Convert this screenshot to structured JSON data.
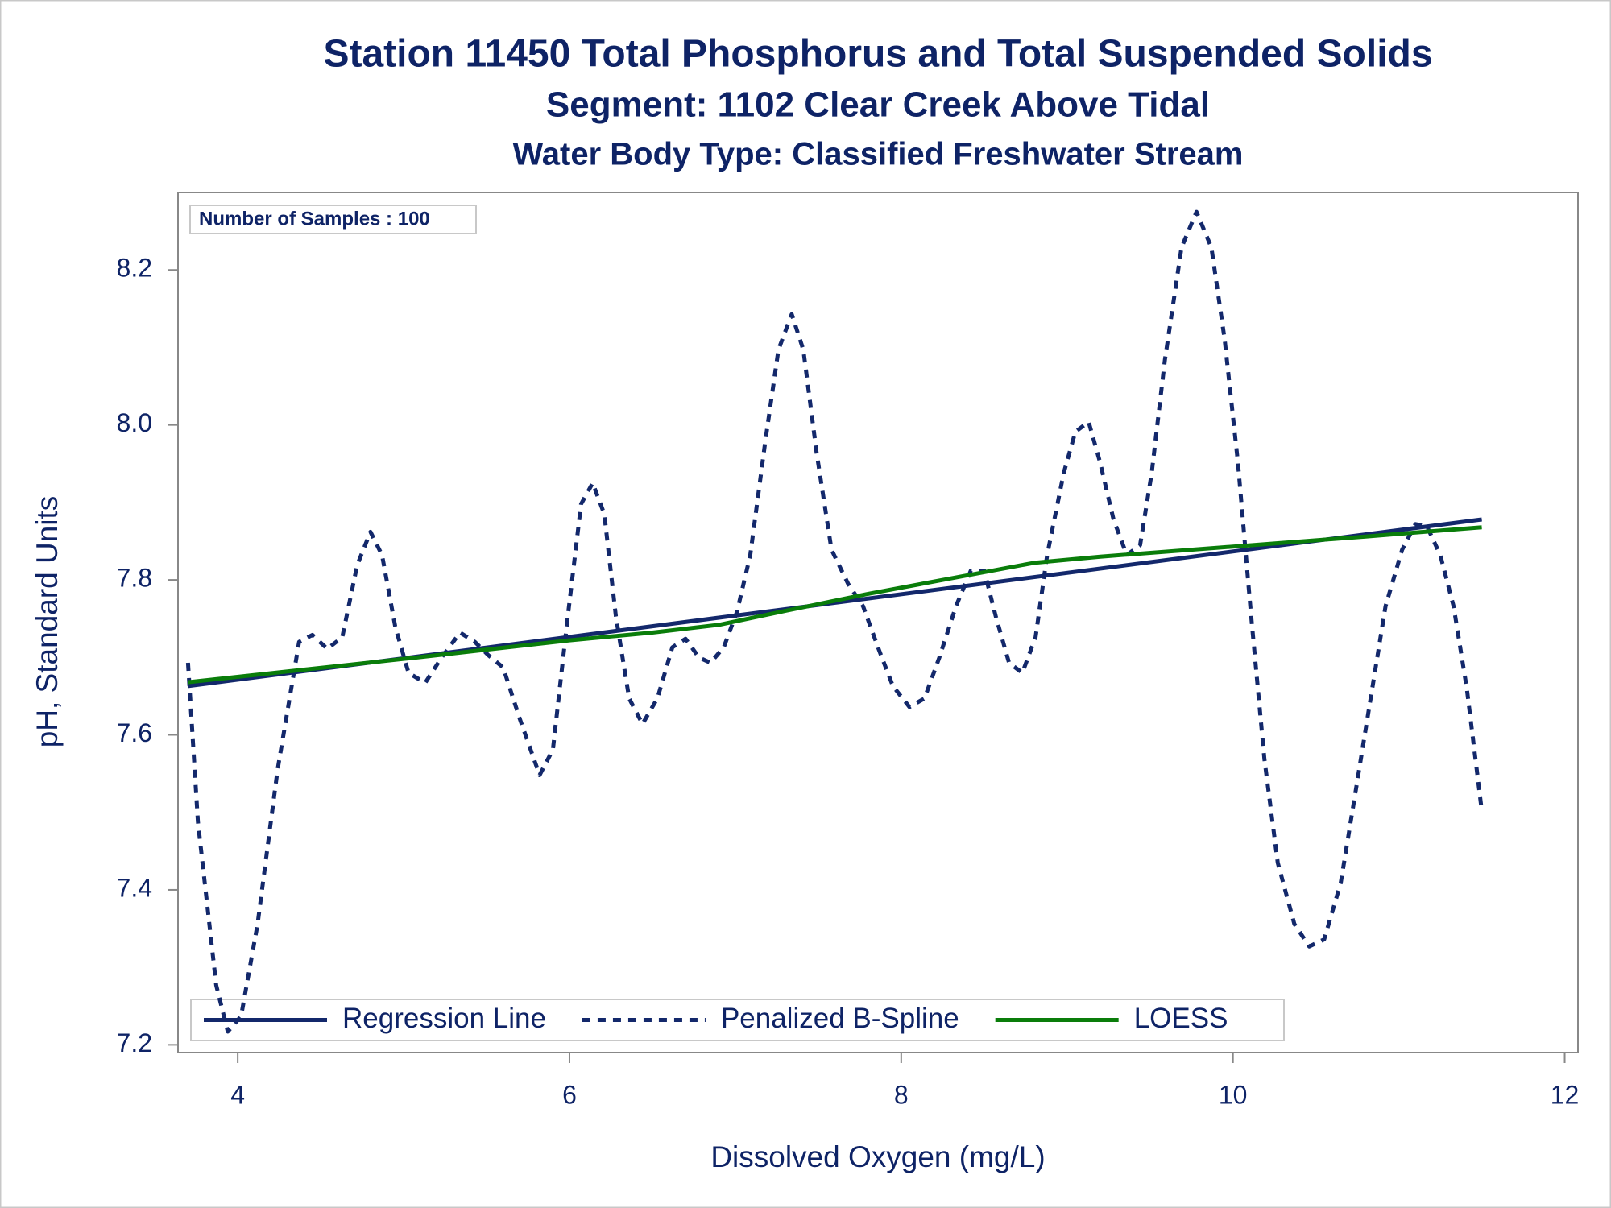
{
  "chart_data": {
    "type": "line",
    "titles": [
      "Station 11450  Total Phosphorus and Total Suspended Solids",
      "Segment: 1102  Clear Creek Above Tidal",
      "Water Body Type: Classified Freshwater Stream"
    ],
    "annotation": "Number of Samples : 100",
    "x_label": "Dissolved Oxygen (mg/L)",
    "y_label": "pH, Standard Units",
    "xlim": [
      3.64,
      12.08
    ],
    "ylim": [
      7.19,
      8.3
    ],
    "xticks": [
      4,
      6,
      8,
      10,
      12
    ],
    "yticks": [
      {
        "value": 7.2,
        "label": "7.2"
      },
      {
        "value": 7.4,
        "label": "7.4"
      },
      {
        "value": 7.6,
        "label": "7.6"
      },
      {
        "value": 7.8,
        "label": "7.8"
      },
      {
        "value": 8.0,
        "label": "8.0"
      },
      {
        "value": 8.2,
        "label": "8.2"
      }
    ],
    "legend": "bottom-left",
    "series": [
      {
        "name": "Regression Line",
        "color": "#13286b",
        "dash": "solid",
        "x": [
          3.7,
          11.5
        ],
        "values": [
          7.663,
          7.878
        ]
      },
      {
        "name": "Penalized B-Spline",
        "color": "#13286b",
        "dash": "dashed",
        "x": [
          3.7,
          3.76,
          3.87,
          3.94,
          4.02,
          4.12,
          4.24,
          4.37,
          4.45,
          4.54,
          4.63,
          4.72,
          4.8,
          4.87,
          4.95,
          5.03,
          5.13,
          5.23,
          5.34,
          5.43,
          5.51,
          5.6,
          5.7,
          5.82,
          5.9,
          5.99,
          6.07,
          6.14,
          6.21,
          6.28,
          6.36,
          6.44,
          6.53,
          6.62,
          6.7,
          6.78,
          6.85,
          6.93,
          7.01,
          7.09,
          7.18,
          7.26,
          7.34,
          7.41,
          7.49,
          7.58,
          7.68,
          7.77,
          7.86,
          7.95,
          8.05,
          8.14,
          8.23,
          8.33,
          8.42,
          8.5,
          8.57,
          8.65,
          8.73,
          8.81,
          8.88,
          8.98,
          9.05,
          9.13,
          9.2,
          9.28,
          9.36,
          9.44,
          9.51,
          9.59,
          9.69,
          9.78,
          9.87,
          9.95,
          10.03,
          10.11,
          10.19,
          10.27,
          10.37,
          10.46,
          10.55,
          10.65,
          10.74,
          10.83,
          10.92,
          11.02,
          11.1,
          11.17,
          11.25,
          11.33,
          11.41,
          11.5
        ],
        "values": [
          7.693,
          7.488,
          7.277,
          7.217,
          7.237,
          7.356,
          7.555,
          7.72,
          7.729,
          7.711,
          7.726,
          7.819,
          7.862,
          7.832,
          7.739,
          7.68,
          7.667,
          7.7,
          7.732,
          7.72,
          7.703,
          7.687,
          7.621,
          7.548,
          7.581,
          7.753,
          7.898,
          7.925,
          7.885,
          7.753,
          7.647,
          7.614,
          7.647,
          7.713,
          7.724,
          7.7,
          7.693,
          7.713,
          7.759,
          7.832,
          7.978,
          8.097,
          8.143,
          8.097,
          7.964,
          7.839,
          7.795,
          7.766,
          7.713,
          7.663,
          7.636,
          7.647,
          7.7,
          7.766,
          7.812,
          7.812,
          7.753,
          7.693,
          7.68,
          7.726,
          7.832,
          7.938,
          7.991,
          8.004,
          7.951,
          7.878,
          7.832,
          7.845,
          7.938,
          8.084,
          8.229,
          8.275,
          8.229,
          8.11,
          7.951,
          7.753,
          7.568,
          7.435,
          7.356,
          7.327,
          7.336,
          7.409,
          7.528,
          7.647,
          7.766,
          7.839,
          7.872,
          7.869,
          7.832,
          7.766,
          7.66,
          7.502
        ]
      },
      {
        "name": "LOESS",
        "color": "#0a7d0a",
        "dash": "solid",
        "x": [
          3.7,
          5.0,
          6.0,
          6.5,
          6.9,
          7.3,
          7.8,
          8.3,
          8.8,
          9.2,
          10.0,
          10.8,
          11.5
        ],
        "values": [
          7.668,
          7.698,
          7.722,
          7.732,
          7.742,
          7.76,
          7.782,
          7.802,
          7.822,
          7.83,
          7.843,
          7.856,
          7.868
        ]
      }
    ]
  }
}
